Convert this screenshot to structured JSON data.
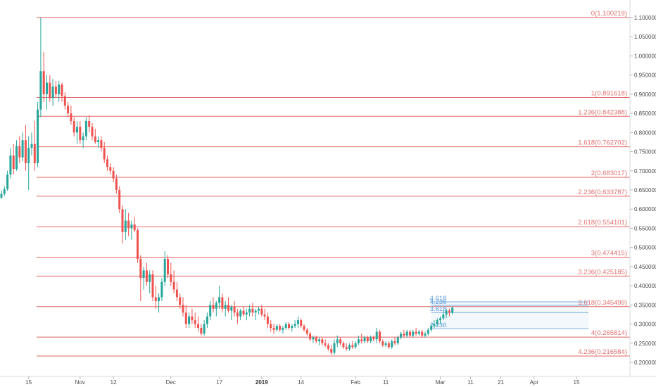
{
  "chart_data": {
    "type": "candlestick",
    "ylim": [
      0.18,
      1.13
    ],
    "xlim": [
      0,
      205
    ],
    "colors": {
      "up": "#26a69a",
      "down": "#ef5350",
      "fib_line": "#e06666",
      "fib_label": "#e07070",
      "projection": "#5b9bd5",
      "axis_text": "#4a4a4a"
    },
    "y_ticks": [
      "0.200000",
      "0.250000",
      "0.300000",
      "0.350000",
      "0.400000",
      "0.450000",
      "0.500000",
      "0.550000",
      "0.600000",
      "0.650000",
      "0.700000",
      "0.750000",
      "0.800000",
      "0.850000",
      "0.900000",
      "0.950000",
      "1.000000",
      "1.050000",
      "1.100000"
    ],
    "x_ticks": [
      {
        "label": "15",
        "x": 9,
        "bold": false
      },
      {
        "label": "Nov",
        "x": 26,
        "bold": false
      },
      {
        "label": "12",
        "x": 37,
        "bold": false
      },
      {
        "label": "Dec",
        "x": 56,
        "bold": false
      },
      {
        "label": "17",
        "x": 72,
        "bold": false
      },
      {
        "label": "2019",
        "x": 86,
        "bold": true
      },
      {
        "label": "14",
        "x": 99,
        "bold": false
      },
      {
        "label": "Feb",
        "x": 117,
        "bold": false
      },
      {
        "label": "11",
        "x": 127,
        "bold": false
      },
      {
        "label": "Mar",
        "x": 145,
        "bold": false
      },
      {
        "label": "11",
        "x": 155,
        "bold": false
      },
      {
        "label": "21",
        "x": 165,
        "bold": false
      },
      {
        "label": "Apr",
        "x": 176,
        "bold": false
      },
      {
        "label": "15",
        "x": 190,
        "bold": false
      }
    ],
    "fib_levels": [
      {
        "label": "0(1.100219)",
        "value": 1.100219
      },
      {
        "label": "1(0.891618)",
        "value": 0.891618
      },
      {
        "label": "1.236(0.842388)",
        "value": 0.842388
      },
      {
        "label": "1.618(0.762702)",
        "value": 0.762702
      },
      {
        "label": "2(0.683017)",
        "value": 0.683017
      },
      {
        "label": "2.236(0.633787)",
        "value": 0.633787
      },
      {
        "label": "2.618(0.554101)",
        "value": 0.554101
      },
      {
        "label": "3(0.474415)",
        "value": 0.474415
      },
      {
        "label": "3.236(0.425185)",
        "value": 0.425185
      },
      {
        "label": "3.618(0.345499)",
        "value": 0.345499
      },
      {
        "label": "4(0.265814)",
        "value": 0.265814
      },
      {
        "label": "4.236(0.216584)",
        "value": 0.216584
      }
    ],
    "projection_levels": [
      {
        "label": "2.236",
        "value": 0.288
      },
      {
        "label": "3.618",
        "value": 0.33
      },
      {
        "label": "4.236",
        "value": 0.349
      },
      {
        "label": "4.618",
        "value": 0.358
      }
    ],
    "projection_range": [
      142,
      194
    ],
    "candles": [
      [
        0,
        0.63,
        0.648,
        0.626,
        0.64
      ],
      [
        1,
        0.64,
        0.66,
        0.634,
        0.652
      ],
      [
        2,
        0.652,
        0.7,
        0.648,
        0.69
      ],
      [
        3,
        0.69,
        0.76,
        0.68,
        0.74
      ],
      [
        4,
        0.74,
        0.77,
        0.69,
        0.705
      ],
      [
        5,
        0.705,
        0.78,
        0.7,
        0.765
      ],
      [
        6,
        0.765,
        0.79,
        0.72,
        0.735
      ],
      [
        7,
        0.735,
        0.8,
        0.725,
        0.78
      ],
      [
        8,
        0.78,
        0.82,
        0.7,
        0.72
      ],
      [
        9,
        0.72,
        0.79,
        0.65,
        0.76
      ],
      [
        10,
        0.76,
        0.8,
        0.74,
        0.77
      ],
      [
        11,
        0.77,
        0.83,
        0.7,
        0.72
      ],
      [
        12,
        0.72,
        0.88,
        0.71,
        0.86
      ],
      [
        13,
        0.86,
        1.1,
        0.84,
        0.96
      ],
      [
        14,
        0.96,
        1.01,
        0.88,
        0.9
      ],
      [
        15,
        0.9,
        0.95,
        0.86,
        0.93
      ],
      [
        16,
        0.93,
        0.95,
        0.88,
        0.89
      ],
      [
        17,
        0.89,
        0.94,
        0.87,
        0.92
      ],
      [
        18,
        0.92,
        0.935,
        0.89,
        0.9
      ],
      [
        19,
        0.9,
        0.935,
        0.88,
        0.925
      ],
      [
        20,
        0.925,
        0.93,
        0.88,
        0.895
      ],
      [
        21,
        0.895,
        0.905,
        0.86,
        0.87
      ],
      [
        22,
        0.87,
        0.88,
        0.84,
        0.85
      ],
      [
        23,
        0.85,
        0.87,
        0.82,
        0.83
      ],
      [
        24,
        0.83,
        0.84,
        0.79,
        0.8
      ],
      [
        25,
        0.8,
        0.83,
        0.77,
        0.815
      ],
      [
        26,
        0.815,
        0.83,
        0.77,
        0.78
      ],
      [
        27,
        0.78,
        0.8,
        0.76,
        0.79
      ],
      [
        28,
        0.79,
        0.84,
        0.78,
        0.83
      ],
      [
        29,
        0.83,
        0.845,
        0.8,
        0.815
      ],
      [
        30,
        0.815,
        0.825,
        0.78,
        0.79
      ],
      [
        31,
        0.79,
        0.81,
        0.77,
        0.775
      ],
      [
        32,
        0.775,
        0.79,
        0.76,
        0.78
      ],
      [
        33,
        0.78,
        0.79,
        0.75,
        0.76
      ],
      [
        34,
        0.76,
        0.775,
        0.72,
        0.73
      ],
      [
        35,
        0.73,
        0.74,
        0.7,
        0.71
      ],
      [
        36,
        0.71,
        0.72,
        0.69,
        0.7
      ],
      [
        37,
        0.7,
        0.71,
        0.67,
        0.68
      ],
      [
        38,
        0.68,
        0.69,
        0.64,
        0.65
      ],
      [
        39,
        0.65,
        0.66,
        0.59,
        0.6
      ],
      [
        40,
        0.6,
        0.61,
        0.51,
        0.54
      ],
      [
        41,
        0.54,
        0.6,
        0.52,
        0.57
      ],
      [
        42,
        0.57,
        0.59,
        0.53,
        0.55
      ],
      [
        43,
        0.55,
        0.57,
        0.52,
        0.56
      ],
      [
        44,
        0.56,
        0.58,
        0.54,
        0.545
      ],
      [
        45,
        0.545,
        0.55,
        0.46,
        0.47
      ],
      [
        46,
        0.47,
        0.48,
        0.36,
        0.42
      ],
      [
        47,
        0.42,
        0.45,
        0.39,
        0.44
      ],
      [
        48,
        0.44,
        0.46,
        0.4,
        0.41
      ],
      [
        49,
        0.41,
        0.44,
        0.38,
        0.43
      ],
      [
        50,
        0.43,
        0.44,
        0.36,
        0.37
      ],
      [
        51,
        0.37,
        0.4,
        0.34,
        0.36
      ],
      [
        52,
        0.36,
        0.38,
        0.33,
        0.37
      ],
      [
        53,
        0.37,
        0.42,
        0.36,
        0.41
      ],
      [
        54,
        0.41,
        0.49,
        0.4,
        0.47
      ],
      [
        55,
        0.47,
        0.48,
        0.42,
        0.43
      ],
      [
        56,
        0.43,
        0.46,
        0.4,
        0.41
      ],
      [
        57,
        0.41,
        0.44,
        0.38,
        0.39
      ],
      [
        58,
        0.39,
        0.41,
        0.36,
        0.37
      ],
      [
        59,
        0.37,
        0.38,
        0.34,
        0.35
      ],
      [
        60,
        0.35,
        0.37,
        0.32,
        0.33
      ],
      [
        61,
        0.33,
        0.35,
        0.29,
        0.3
      ],
      [
        62,
        0.3,
        0.33,
        0.29,
        0.32
      ],
      [
        63,
        0.32,
        0.34,
        0.3,
        0.31
      ],
      [
        64,
        0.31,
        0.33,
        0.29,
        0.3
      ],
      [
        65,
        0.3,
        0.32,
        0.28,
        0.29
      ],
      [
        66,
        0.29,
        0.3,
        0.27,
        0.275
      ],
      [
        67,
        0.275,
        0.31,
        0.27,
        0.3
      ],
      [
        68,
        0.3,
        0.33,
        0.29,
        0.32
      ],
      [
        69,
        0.32,
        0.36,
        0.31,
        0.35
      ],
      [
        70,
        0.35,
        0.37,
        0.33,
        0.34
      ],
      [
        71,
        0.34,
        0.36,
        0.32,
        0.355
      ],
      [
        72,
        0.355,
        0.4,
        0.34,
        0.37
      ],
      [
        73,
        0.37,
        0.38,
        0.33,
        0.34
      ],
      [
        74,
        0.34,
        0.36,
        0.32,
        0.35
      ],
      [
        75,
        0.35,
        0.37,
        0.33,
        0.335
      ],
      [
        76,
        0.335,
        0.35,
        0.31,
        0.345
      ],
      [
        77,
        0.345,
        0.36,
        0.32,
        0.33
      ],
      [
        78,
        0.33,
        0.34,
        0.3,
        0.32
      ],
      [
        79,
        0.32,
        0.34,
        0.31,
        0.335
      ],
      [
        80,
        0.335,
        0.345,
        0.32,
        0.325
      ],
      [
        81,
        0.325,
        0.34,
        0.31,
        0.33
      ],
      [
        82,
        0.33,
        0.35,
        0.32,
        0.34
      ],
      [
        83,
        0.34,
        0.355,
        0.32,
        0.33
      ],
      [
        84,
        0.33,
        0.34,
        0.31,
        0.335
      ],
      [
        85,
        0.335,
        0.345,
        0.325,
        0.34
      ],
      [
        86,
        0.34,
        0.35,
        0.32,
        0.325
      ],
      [
        87,
        0.325,
        0.34,
        0.31,
        0.32
      ],
      [
        88,
        0.32,
        0.33,
        0.29,
        0.3
      ],
      [
        89,
        0.3,
        0.31,
        0.28,
        0.29
      ],
      [
        90,
        0.29,
        0.3,
        0.275,
        0.285
      ],
      [
        91,
        0.285,
        0.3,
        0.28,
        0.295
      ],
      [
        92,
        0.295,
        0.3,
        0.28,
        0.285
      ],
      [
        93,
        0.285,
        0.295,
        0.275,
        0.29
      ],
      [
        94,
        0.29,
        0.305,
        0.285,
        0.3
      ],
      [
        95,
        0.3,
        0.305,
        0.285,
        0.29
      ],
      [
        96,
        0.29,
        0.3,
        0.28,
        0.295
      ],
      [
        97,
        0.295,
        0.31,
        0.29,
        0.3
      ],
      [
        98,
        0.3,
        0.32,
        0.29,
        0.31
      ],
      [
        99,
        0.31,
        0.315,
        0.29,
        0.295
      ],
      [
        100,
        0.295,
        0.3,
        0.28,
        0.285
      ],
      [
        101,
        0.285,
        0.29,
        0.27,
        0.275
      ],
      [
        102,
        0.275,
        0.28,
        0.255,
        0.26
      ],
      [
        103,
        0.26,
        0.27,
        0.25,
        0.265
      ],
      [
        104,
        0.265,
        0.27,
        0.25,
        0.255
      ],
      [
        105,
        0.255,
        0.265,
        0.245,
        0.26
      ],
      [
        106,
        0.26,
        0.265,
        0.245,
        0.25
      ],
      [
        107,
        0.25,
        0.26,
        0.24,
        0.245
      ],
      [
        108,
        0.245,
        0.25,
        0.23,
        0.235
      ],
      [
        109,
        0.235,
        0.245,
        0.22,
        0.225
      ],
      [
        110,
        0.225,
        0.26,
        0.22,
        0.25
      ],
      [
        111,
        0.25,
        0.27,
        0.24,
        0.26
      ],
      [
        112,
        0.26,
        0.265,
        0.245,
        0.25
      ],
      [
        113,
        0.25,
        0.255,
        0.235,
        0.24
      ],
      [
        114,
        0.24,
        0.25,
        0.23,
        0.235
      ],
      [
        115,
        0.235,
        0.25,
        0.23,
        0.245
      ],
      [
        116,
        0.245,
        0.255,
        0.235,
        0.24
      ],
      [
        117,
        0.24,
        0.255,
        0.235,
        0.25
      ],
      [
        118,
        0.25,
        0.27,
        0.245,
        0.26
      ],
      [
        119,
        0.26,
        0.275,
        0.25,
        0.255
      ],
      [
        120,
        0.255,
        0.27,
        0.25,
        0.265
      ],
      [
        121,
        0.265,
        0.27,
        0.25,
        0.255
      ],
      [
        122,
        0.255,
        0.27,
        0.25,
        0.265
      ],
      [
        123,
        0.265,
        0.27,
        0.255,
        0.26
      ],
      [
        124,
        0.26,
        0.29,
        0.25,
        0.28
      ],
      [
        125,
        0.28,
        0.285,
        0.25,
        0.255
      ],
      [
        126,
        0.255,
        0.26,
        0.24,
        0.245
      ],
      [
        127,
        0.245,
        0.255,
        0.24,
        0.25
      ],
      [
        128,
        0.25,
        0.255,
        0.235,
        0.24
      ],
      [
        129,
        0.24,
        0.26,
        0.235,
        0.255
      ],
      [
        130,
        0.255,
        0.265,
        0.245,
        0.25
      ],
      [
        131,
        0.25,
        0.27,
        0.245,
        0.265
      ],
      [
        132,
        0.265,
        0.28,
        0.26,
        0.275
      ],
      [
        133,
        0.275,
        0.285,
        0.265,
        0.27
      ],
      [
        134,
        0.27,
        0.285,
        0.265,
        0.28
      ],
      [
        135,
        0.28,
        0.285,
        0.265,
        0.27
      ],
      [
        136,
        0.27,
        0.285,
        0.265,
        0.28
      ],
      [
        137,
        0.28,
        0.29,
        0.27,
        0.275
      ],
      [
        138,
        0.275,
        0.285,
        0.27,
        0.28
      ],
      [
        139,
        0.28,
        0.285,
        0.265,
        0.27
      ],
      [
        140,
        0.27,
        0.28,
        0.265,
        0.275
      ],
      [
        141,
        0.275,
        0.29,
        0.27,
        0.285
      ],
      [
        142,
        0.285,
        0.3,
        0.28,
        0.295
      ],
      [
        143,
        0.295,
        0.31,
        0.29,
        0.3
      ],
      [
        144,
        0.3,
        0.315,
        0.295,
        0.31
      ],
      [
        145,
        0.31,
        0.32,
        0.3,
        0.315
      ],
      [
        146,
        0.315,
        0.335,
        0.31,
        0.325
      ],
      [
        147,
        0.325,
        0.34,
        0.315,
        0.335
      ],
      [
        148,
        0.335,
        0.34,
        0.32,
        0.33
      ],
      [
        149,
        0.33,
        0.345,
        0.325,
        0.343
      ]
    ]
  }
}
